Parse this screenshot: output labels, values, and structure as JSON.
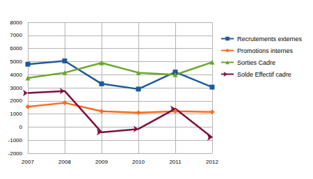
{
  "chart_data": {
    "type": "line",
    "categories": [
      "2007",
      "2008",
      "2009",
      "2010",
      "2011",
      "2012"
    ],
    "series": [
      {
        "name": "Recrutements externes",
        "color": "#1c5a9a",
        "marker": "square",
        "values": [
          4800,
          5050,
          3300,
          2900,
          4200,
          3050
        ]
      },
      {
        "name": "Promotions internes",
        "color": "#ff6a1a",
        "marker": "diamond",
        "values": [
          1550,
          1850,
          1200,
          1100,
          1200,
          1150
        ]
      },
      {
        "name": "Sorties Cadre",
        "color": "#6aa72a",
        "marker": "triangle",
        "values": [
          3750,
          4150,
          4900,
          4150,
          4000,
          4950
        ]
      },
      {
        "name": "Solde Effectif cadre",
        "color": "#7e0f3e",
        "marker": "arrow",
        "values": [
          2600,
          2750,
          -400,
          -150,
          1400,
          -800
        ]
      }
    ],
    "ylim": [
      -2000,
      8000
    ],
    "yticks": [
      -2000,
      -1000,
      0,
      1000,
      2000,
      3000,
      4000,
      5000,
      6000,
      7000,
      8000
    ],
    "grid": true,
    "legend": "right"
  }
}
